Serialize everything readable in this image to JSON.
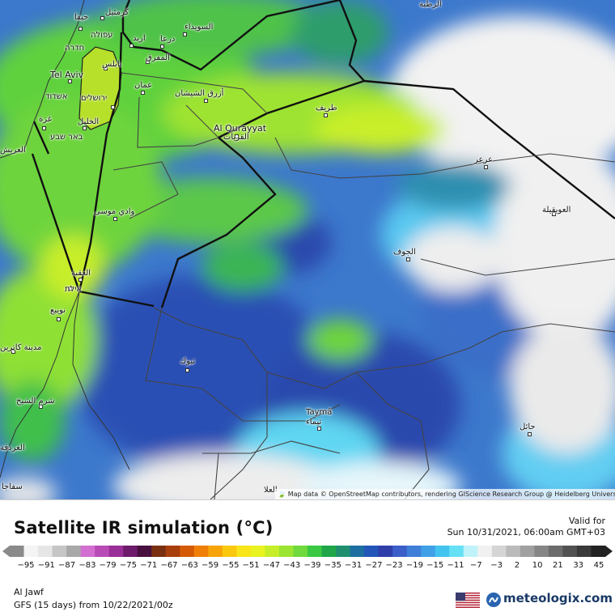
{
  "map": {
    "attribution": "Map data © OpenStreetMap contributors, rendering GIScience Research Group @ Heidelberg University",
    "places": [
      {
        "id": "haifa",
        "label": "حيفا"
      },
      {
        "id": "karmiel",
        "label": "كرمئيل"
      },
      {
        "id": "afula",
        "label": "עפולה"
      },
      {
        "id": "hadera",
        "label": "חדרה"
      },
      {
        "id": "irbid",
        "label": "اربد"
      },
      {
        "id": "daraa",
        "label": "درعا"
      },
      {
        "id": "sweida",
        "label": "السويداء"
      },
      {
        "id": "mafraq",
        "label": "المفرق"
      },
      {
        "id": "nablus",
        "label": "نابلس"
      },
      {
        "id": "telaviv",
        "label": "Tel Aviv"
      },
      {
        "id": "amman",
        "label": "عمان"
      },
      {
        "id": "ashdod",
        "label": "אשדוד"
      },
      {
        "id": "jerusalem",
        "label": "ירושלים"
      },
      {
        "id": "gaza",
        "label": "غزة"
      },
      {
        "id": "hebron",
        "label": "الخليل"
      },
      {
        "id": "beersheba",
        "label": "באר שבע"
      },
      {
        "id": "azraq",
        "label": "أزرق الشيشان"
      },
      {
        "id": "turaif",
        "label": "طريف"
      },
      {
        "id": "qurayyat",
        "label": "Al Qurayyat"
      },
      {
        "id": "qurayyat_ar",
        "label": "القريات"
      },
      {
        "id": "arar",
        "label": "عرعر"
      },
      {
        "id": "uwayqilah",
        "label": "العويقيلة"
      },
      {
        "id": "rutba",
        "label": "الرطبة"
      },
      {
        "id": "wadimusa",
        "label": "وادي موسى"
      },
      {
        "id": "jawf",
        "label": "الجوف"
      },
      {
        "id": "aqaba",
        "label": "العقبة"
      },
      {
        "id": "eilat",
        "label": "אילת"
      },
      {
        "id": "nuweiba",
        "label": "نويبع"
      },
      {
        "id": "tabuk",
        "label": "تبوك"
      },
      {
        "id": "madinat",
        "label": "مدينة كاترين"
      },
      {
        "id": "sharm",
        "label": "شرم الشيخ"
      },
      {
        "id": "tayma",
        "label": "Taymā"
      },
      {
        "id": "tayma_ar",
        "label": "تيماء"
      },
      {
        "id": "hail",
        "label": "حائل"
      },
      {
        "id": "arish",
        "label": "العريش"
      },
      {
        "id": "ghardaqa",
        "label": "الغردقة"
      },
      {
        "id": "safaga",
        "label": "سفاجا"
      },
      {
        "id": "ula",
        "label": "العلا"
      }
    ]
  },
  "legend": {
    "title": "Satellite IR simulation (°C)",
    "valid_label": "Valid for",
    "valid_time": "Sun 10/31/2021, 06:00am GMT+03",
    "scale_colors": [
      "#8a8a8a",
      "#f4f4f4",
      "#e6e6e6",
      "#c6c6c6",
      "#a8a8a8",
      "#d36fd0",
      "#b94bb6",
      "#9a2f98",
      "#6e1b6c",
      "#48103f",
      "#7a3010",
      "#a83e0c",
      "#d45a06",
      "#f07f08",
      "#f7a40b",
      "#fac80f",
      "#f8e51a",
      "#e8f321",
      "#c6ee2a",
      "#9be532",
      "#6fd93d",
      "#3bc842",
      "#1fa648",
      "#1f8f70",
      "#1c6fa0",
      "#2356b8",
      "#2f3ea8",
      "#3c5ec8",
      "#3f7fd8",
      "#40a0e6",
      "#42c4ef",
      "#66e0f5",
      "#bff3f9",
      "#f1f1f1",
      "#d5d5d5",
      "#bbbbbb",
      "#a0a0a0",
      "#868686",
      "#6c6c6c",
      "#525252",
      "#3a3a3a",
      "#222222"
    ],
    "tick_labels": [
      "−95",
      "−91",
      "−87",
      "−83",
      "−79",
      "−75",
      "−71",
      "−67",
      "−63",
      "−59",
      "−55",
      "−51",
      "−47",
      "−43",
      "−39",
      "−35",
      "−31",
      "−27",
      "−23",
      "−19",
      "−15",
      "−11",
      "−7",
      "−3",
      "2",
      "10",
      "21",
      "33",
      "45"
    ],
    "location": "Al Jawf",
    "model_run": "GFS (15 days) from 10/22/2021/00z",
    "brand": "meteologix.com"
  }
}
